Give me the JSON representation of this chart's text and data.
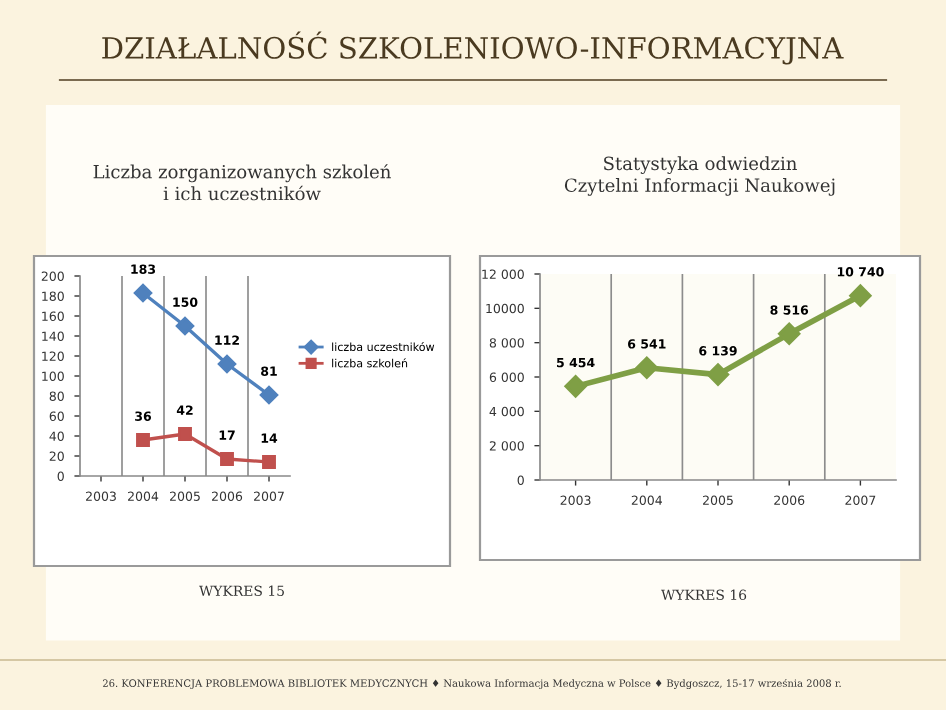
{
  "chart_data": [
    {
      "type": "line",
      "title": "Liczba zorganizowanych szkoleń\ni ich uczestników",
      "categories": [
        "2003",
        "2004",
        "2005",
        "2006",
        "2007"
      ],
      "series": [
        {
          "name": "liczba uczestników",
          "color": "#4f81bd",
          "marker": "diamond",
          "values": [
            null,
            183,
            150,
            112,
            81
          ]
        },
        {
          "name": "liczba szkoleń",
          "color": "#c0504d",
          "marker": "square",
          "values": [
            null,
            36,
            42,
            17,
            14
          ]
        }
      ],
      "ylim": [
        0,
        200
      ],
      "yticks": [
        0,
        20,
        40,
        60,
        80,
        100,
        120,
        140,
        160,
        180,
        200
      ],
      "grid": "x",
      "legend": "right",
      "data_labels": true,
      "annotations": [
        "DZIAŁALNOŚĆ SZKOLENIOWO-INFORMACYJNA",
        "WYKRES 15"
      ]
    },
    {
      "type": "line",
      "title": "Statystyka odwiedzin\nCzytelni Informacji Naukowej",
      "categories": [
        "2003",
        "2004",
        "2005",
        "2006",
        "2007"
      ],
      "series": [
        {
          "color": "#7f9f45",
          "marker": "diamond",
          "values": [
            5454,
            6541,
            6139,
            8516,
            10740
          ],
          "value_labels": [
            "5 454",
            "6 541",
            "6 139",
            "8 516",
            "10 740"
          ]
        }
      ],
      "ylim": [
        0,
        12000
      ],
      "yticks": [
        0,
        {
          "value": 2000,
          "label": "2 000"
        },
        {
          "value": 4000,
          "label": "4 000"
        },
        {
          "value": 6000,
          "label": "6 000"
        },
        {
          "value": 8000,
          "label": "8 000"
        },
        {
          "value": 10000,
          "label": "10000"
        },
        {
          "value": 12000,
          "label": "12 000"
        }
      ],
      "grid": "x",
      "annotations": [
        "WYKRES 16",
        "26. KONFERENCJA PROBLEMOWA BIBLIOTEK MEDYCZNYCH ♦ Naukowa Informacja Medyczna w Polsce ♦ Bydgoszcz, 15-17 września 2008 r."
      ]
    }
  ]
}
